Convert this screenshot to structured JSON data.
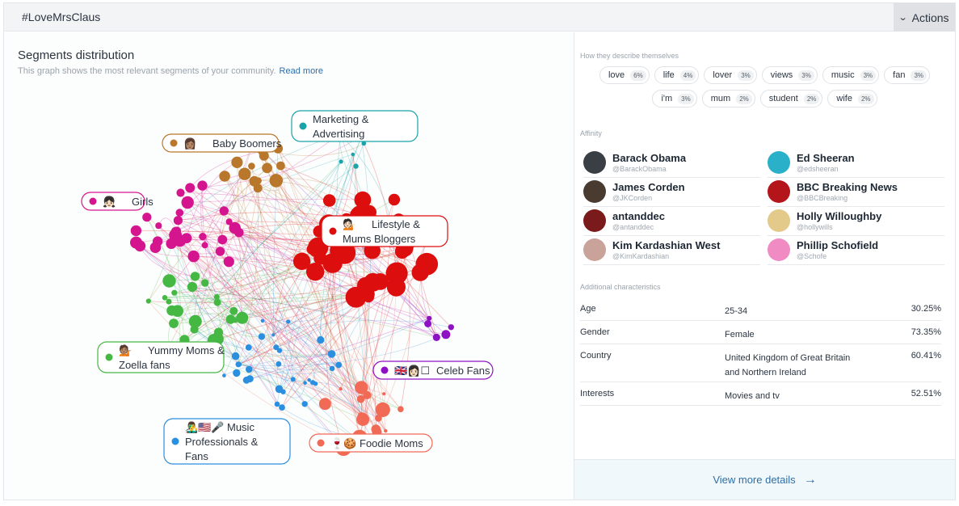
{
  "header": {
    "title": "#LoveMrsClaus",
    "actions_label": "Actions",
    "actions_icon": "chevron-down-icon"
  },
  "segments": {
    "title": "Segments distribution",
    "subtitle": "This graph shows the most relevant segments of your community.",
    "read_more": "Read more",
    "groups": [
      {
        "id": "baby",
        "label_lines": [
          "Baby Boomers"
        ],
        "emoji": "👩🏽",
        "color": "#b8772a"
      },
      {
        "id": "marketing",
        "label_lines": [
          "Marketing &",
          "Advertising"
        ],
        "emoji": "",
        "color": "#1aa3a8"
      },
      {
        "id": "girls",
        "label_lines": [
          "Girls"
        ],
        "emoji": "👧🏻",
        "color": "#d4158e"
      },
      {
        "id": "lifestyle",
        "label_lines": [
          "Lifestyle &",
          "Mums Bloggers"
        ],
        "emoji": "💁🏻",
        "color": "#dd0e0e"
      },
      {
        "id": "yummy",
        "label_lines": [
          "Yummy Moms &",
          "Zoella fans"
        ],
        "emoji": "💁🏽",
        "color": "#45b844"
      },
      {
        "id": "celeb",
        "label_lines": [
          "Celeb Fans"
        ],
        "emoji": "🇬🇧👩🏻☐",
        "color": "#8e12c4"
      },
      {
        "id": "music",
        "label_lines": [
          "Music",
          "Professionals &",
          "Fans"
        ],
        "emoji": "👨‍🎤🇺🇸🎤",
        "color": "#2b8fe0"
      },
      {
        "id": "foodie",
        "label_lines": [
          "Foodie Moms"
        ],
        "emoji": "🍷🍪",
        "color": "#f06a55"
      }
    ]
  },
  "describe": {
    "label": "How they describe themselves",
    "row1": [
      {
        "word": "love",
        "pct": "6%"
      },
      {
        "word": "life",
        "pct": "4%"
      },
      {
        "word": "lover",
        "pct": "3%"
      },
      {
        "word": "views",
        "pct": "3%"
      },
      {
        "word": "music",
        "pct": "3%"
      },
      {
        "word": "fan",
        "pct": "3%"
      }
    ],
    "row2": [
      {
        "word": "i'm",
        "pct": "3%"
      },
      {
        "word": "mum",
        "pct": "2%"
      },
      {
        "word": "student",
        "pct": "2%"
      },
      {
        "word": "wife",
        "pct": "2%"
      }
    ]
  },
  "affinity": {
    "label": "Affinity",
    "items": [
      {
        "name": "Barack Obama",
        "handle": "@BarackObama",
        "color": "#3a3f45"
      },
      {
        "name": "Ed Sheeran",
        "handle": "@edsheeran",
        "color": "#2bb0c9"
      },
      {
        "name": "James Corden",
        "handle": "@JKCorden",
        "color": "#4a3b30"
      },
      {
        "name": "BBC Breaking News",
        "handle": "@BBCBreaking",
        "color": "#b3151b"
      },
      {
        "name": "antanddec",
        "handle": "@antanddec",
        "color": "#7a1a1a"
      },
      {
        "name": "Holly Willoughby",
        "handle": "@hollywills",
        "color": "#e3c98a"
      },
      {
        "name": "Kim Kardashian West",
        "handle": "@KimKardashian",
        "color": "#c9a39a"
      },
      {
        "name": "Phillip Schofield",
        "handle": "@Schofe",
        "color": "#f08bc4"
      }
    ]
  },
  "characteristics": {
    "label": "Additional characteristics",
    "rows": [
      {
        "key": "Age",
        "value": "25-34",
        "pct": "30.25%"
      },
      {
        "key": "Gender",
        "value": "Female",
        "pct": "73.35%"
      },
      {
        "key": "Country",
        "value": "United Kingdom of Great Britain and Northern Ireland",
        "pct": "60.41%"
      },
      {
        "key": "Interests",
        "value": "Movies and tv",
        "pct": "52.51%"
      }
    ]
  },
  "footer": {
    "view_more": "View more details",
    "arrow_icon": "arrow-right-icon"
  }
}
